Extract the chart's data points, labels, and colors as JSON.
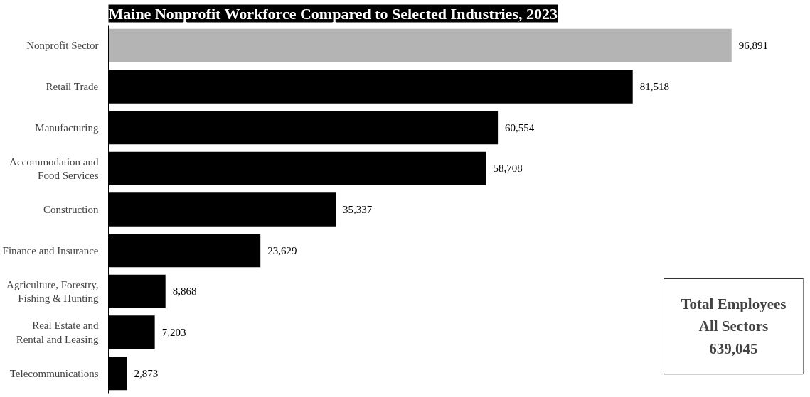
{
  "chart_data": {
    "type": "bar",
    "orientation": "horizontal",
    "title": "Maine Nonprofit Workforce Compared to Selected Industries, 2023",
    "categories": [
      "Nonprofit Sector",
      "Retail Trade",
      "Manufacturing",
      "Accommodation and\nFood Services",
      "Construction",
      "Finance and Insurance",
      "Agriculture, Forestry,\nFishing & Hunting",
      "Real Estate and\nRental and Leasing",
      "Telecommunications"
    ],
    "values": [
      96891,
      81518,
      60554,
      58708,
      35337,
      23629,
      8868,
      7203,
      2873
    ],
    "value_labels": [
      "96,891",
      "81,518",
      "60,554",
      "58,708",
      "35,337",
      "23,629",
      "8,868",
      "7,203",
      "2,873"
    ],
    "colors": [
      "#b4b4b4",
      "#000000",
      "#000000",
      "#000000",
      "#000000",
      "#000000",
      "#000000",
      "#000000",
      "#000000"
    ],
    "tick_labels": "y",
    "grid": false,
    "annotations": [
      "Total Employees\nAll Sectors\n639,045"
    ]
  }
}
